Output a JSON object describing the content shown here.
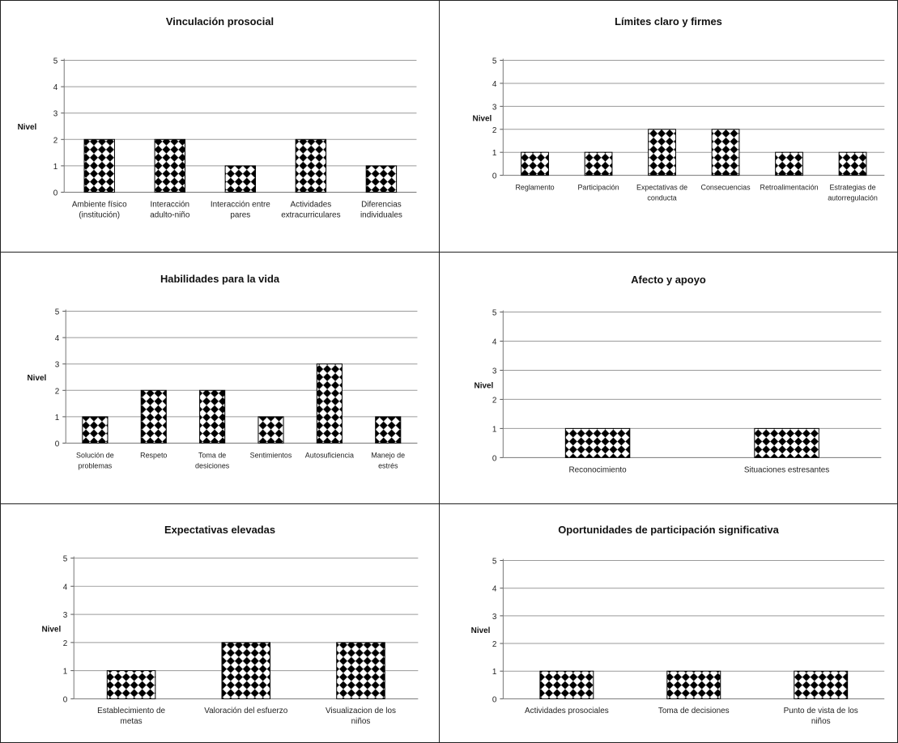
{
  "chart_data": [
    {
      "type": "bar",
      "title": "Vinculación prosocial",
      "ylabel": "Nivel",
      "ylim": [
        0,
        5
      ],
      "yticks": [
        "0",
        "1",
        "2",
        "3",
        "4",
        "5"
      ],
      "grid": true,
      "categories": [
        [
          "Ambiente físico",
          "(institución)"
        ],
        [
          "Interacción",
          "adulto-niño"
        ],
        [
          "Interacción entre",
          "pares"
        ],
        [
          "Actividades",
          "extracurriculares"
        ],
        [
          "Diferencias",
          "individuales"
        ]
      ],
      "values": [
        2,
        2,
        1,
        2,
        1
      ]
    },
    {
      "type": "bar",
      "title": "Límites claro y firmes",
      "ylabel": "Nivel",
      "ylim": [
        0,
        5
      ],
      "yticks": [
        "0",
        "1",
        "2",
        "3",
        "4",
        "5"
      ],
      "grid": true,
      "categories": [
        [
          "Reglamento"
        ],
        [
          "Participación"
        ],
        [
          "Expectativas de",
          "conducta"
        ],
        [
          "Consecuencias"
        ],
        [
          "Retroalimentación"
        ],
        [
          "Estrategias de",
          "autorregulación"
        ]
      ],
      "values": [
        1,
        1,
        2,
        2,
        1,
        1
      ]
    },
    {
      "type": "bar",
      "title": "Habilidades para la vida",
      "ylabel": "Nivel",
      "ylim": [
        0,
        5
      ],
      "yticks": [
        "0",
        "1",
        "2",
        "3",
        "4",
        "5"
      ],
      "grid": true,
      "categories": [
        [
          "Solución de",
          "problemas"
        ],
        [
          "Respeto"
        ],
        [
          "Toma de",
          "desiciones"
        ],
        [
          "Sentimientos"
        ],
        [
          "Autosuficiencia"
        ],
        [
          "Manejo de",
          "estrés"
        ]
      ],
      "values": [
        1,
        2,
        2,
        1,
        3,
        1
      ]
    },
    {
      "type": "bar",
      "title": "Afecto y apoyo",
      "ylabel": "Nivel",
      "ylim": [
        0,
        5
      ],
      "yticks": [
        "0",
        "1",
        "2",
        "3",
        "4",
        "5"
      ],
      "grid": true,
      "categories": [
        [
          "Reconocimiento"
        ],
        [
          "Situaciones estresantes"
        ]
      ],
      "values": [
        1,
        1
      ]
    },
    {
      "type": "bar",
      "title": "Expectativas elevadas",
      "ylabel": "Nivel",
      "ylim": [
        0,
        5
      ],
      "yticks": [
        "0",
        "1",
        "2",
        "3",
        "4",
        "5"
      ],
      "grid": true,
      "categories": [
        [
          "Establecimiento de",
          "metas"
        ],
        [
          "Valoración del esfuerzo"
        ],
        [
          "Visualizacion de los",
          "niños"
        ]
      ],
      "values": [
        1,
        2,
        2
      ]
    },
    {
      "type": "bar",
      "title": "Oportunidades de participación significativa",
      "ylabel": "Nivel",
      "ylim": [
        0,
        5
      ],
      "yticks": [
        "0",
        "1",
        "2",
        "3",
        "4",
        "5"
      ],
      "grid": true,
      "categories": [
        [
          "Actividades prosociales"
        ],
        [
          "Toma de decisiones"
        ],
        [
          "Punto de vista de los",
          "niños"
        ]
      ],
      "values": [
        1,
        1,
        1
      ]
    }
  ]
}
